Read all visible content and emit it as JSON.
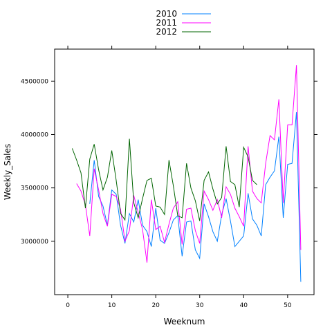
{
  "chart_data": {
    "type": "line",
    "xlabel": "Weeknum",
    "ylabel": "Weekly_Sales",
    "xlim": [
      -3,
      56
    ],
    "ylim": [
      2500000,
      4800000
    ],
    "x_ticks": [
      0,
      10,
      20,
      30,
      40,
      50
    ],
    "y_ticks": [
      3000000,
      3500000,
      4000000,
      4500000
    ],
    "legend_position": "top-center",
    "series": [
      {
        "name": "2010",
        "color": "#0080ff",
        "x": [
          5,
          6,
          7,
          8,
          9,
          10,
          11,
          12,
          13,
          14,
          15,
          16,
          17,
          18,
          19,
          20,
          21,
          22,
          23,
          24,
          25,
          26,
          27,
          28,
          29,
          30,
          31,
          32,
          33,
          34,
          35,
          36,
          37,
          38,
          39,
          40,
          41,
          42,
          43,
          44,
          45,
          46,
          47,
          48,
          49,
          50,
          51,
          52,
          53
        ],
        "values": [
          3350000,
          3760000,
          3420000,
          3330000,
          3150000,
          3480000,
          3440000,
          3150000,
          2980000,
          3260000,
          3180000,
          3390000,
          3150000,
          3090000,
          2950000,
          3310000,
          3010000,
          2980000,
          3080000,
          3200000,
          3240000,
          2860000,
          3180000,
          3190000,
          2920000,
          2840000,
          3350000,
          3230000,
          3090000,
          3000000,
          3250000,
          3400000,
          3190000,
          2950000,
          3000000,
          3050000,
          3450000,
          3210000,
          3150000,
          3050000,
          3530000,
          3600000,
          3660000,
          3980000,
          3220000,
          3720000,
          3730000,
          4210000,
          2620000
        ]
      },
      {
        "name": "2011",
        "color": "#ff00ff",
        "x": [
          2,
          3,
          4,
          5,
          6,
          7,
          8,
          9,
          10,
          11,
          12,
          13,
          14,
          15,
          16,
          17,
          18,
          19,
          20,
          21,
          22,
          23,
          24,
          25,
          26,
          27,
          28,
          29,
          30,
          31,
          32,
          33,
          34,
          35,
          36,
          37,
          38,
          39,
          40,
          41,
          42,
          43,
          44,
          45,
          46,
          47,
          48,
          49,
          50,
          51,
          52,
          53
        ],
        "values": [
          3540000,
          3470000,
          3340000,
          3050000,
          3680000,
          3480000,
          3260000,
          3140000,
          3440000,
          3420000,
          3300000,
          3000000,
          3100000,
          3430000,
          3270000,
          3110000,
          2800000,
          3390000,
          3110000,
          3140000,
          2990000,
          3160000,
          3310000,
          3370000,
          2970000,
          3300000,
          3310000,
          3100000,
          2980000,
          3470000,
          3390000,
          3290000,
          3390000,
          3220000,
          3510000,
          3440000,
          3310000,
          3230000,
          3140000,
          3890000,
          3470000,
          3400000,
          3360000,
          3730000,
          3990000,
          3950000,
          4330000,
          3360000,
          4090000,
          4090000,
          4650000,
          2920000
        ]
      },
      {
        "name": "2012",
        "color": "#006400",
        "x": [
          1,
          2,
          3,
          4,
          5,
          6,
          7,
          8,
          9,
          10,
          11,
          12,
          13,
          14,
          15,
          16,
          17,
          18,
          19,
          20,
          21,
          22,
          23,
          24,
          25,
          26,
          27,
          28,
          29,
          30,
          31,
          32,
          33,
          34,
          35,
          36,
          37,
          38,
          39,
          40,
          41,
          42,
          43
        ],
        "values": [
          3870000,
          3760000,
          3640000,
          3310000,
          3770000,
          3910000,
          3670000,
          3480000,
          3600000,
          3850000,
          3570000,
          3260000,
          3200000,
          3960000,
          3360000,
          3220000,
          3400000,
          3570000,
          3590000,
          3330000,
          3320000,
          3250000,
          3760000,
          3520000,
          3240000,
          3220000,
          3730000,
          3500000,
          3380000,
          3190000,
          3570000,
          3650000,
          3490000,
          3350000,
          3410000,
          3890000,
          3560000,
          3530000,
          3320000,
          3880000,
          3790000,
          3570000,
          3530000
        ]
      }
    ]
  }
}
